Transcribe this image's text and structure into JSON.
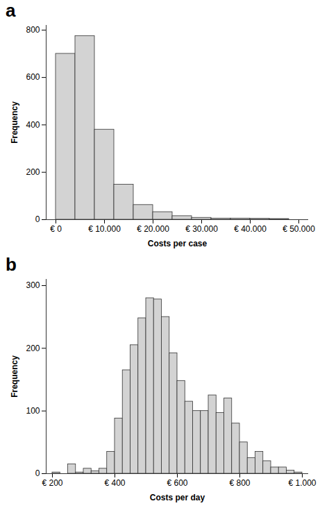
{
  "chart_data": [
    {
      "type": "histogram",
      "title": "a",
      "x_label": "Costs per case",
      "y_label": "Frequency",
      "bins": [
        0,
        4000,
        8000,
        12000,
        16000,
        20000,
        24000,
        28000,
        32000,
        36000,
        40000,
        44000,
        48000
      ],
      "values": [
        700,
        775,
        380,
        148,
        62,
        32,
        15,
        8,
        5,
        5,
        4,
        3
      ],
      "color": "#d3d3d3",
      "xlim": [
        -2000,
        52000
      ],
      "xticks": [
        {
          "value": 0,
          "label": "€ 0"
        },
        {
          "value": 10000,
          "label": "€ 10.000"
        },
        {
          "value": 20000,
          "label": "€ 20.000"
        },
        {
          "value": 30000,
          "label": "€ 30.000"
        },
        {
          "value": 40000,
          "label": "€ 40.000"
        },
        {
          "value": 50000,
          "label": "€ 50.000"
        }
      ],
      "ylim": [
        0,
        820
      ],
      "yticks": [
        0,
        200,
        400,
        600,
        800
      ],
      "grid": false
    },
    {
      "type": "histogram",
      "title": "b",
      "x_label": "Costs per day",
      "y_label": "Frequency",
      "bins": [
        200,
        225,
        250,
        275,
        300,
        325,
        350,
        375,
        400,
        425,
        450,
        475,
        500,
        525,
        550,
        575,
        600,
        625,
        650,
        675,
        700,
        725,
        750,
        775,
        800,
        825,
        850,
        875,
        900,
        925,
        950,
        975,
        1000
      ],
      "values": [
        2,
        0,
        15,
        2,
        8,
        4,
        8,
        35,
        88,
        165,
        205,
        248,
        280,
        278,
        250,
        192,
        148,
        115,
        100,
        100,
        125,
        97,
        120,
        80,
        50,
        25,
        35,
        20,
        10,
        10,
        5,
        2
      ],
      "color": "#d3d3d3",
      "xlim": [
        180,
        1020
      ],
      "xticks": [
        {
          "value": 200,
          "label": "€ 200"
        },
        {
          "value": 400,
          "label": "€ 400"
        },
        {
          "value": 600,
          "label": "€ 600"
        },
        {
          "value": 800,
          "label": "€ 800"
        },
        {
          "value": 1000,
          "label": "€ 1.000"
        }
      ],
      "ylim": [
        0,
        310
      ],
      "yticks": [
        0,
        100,
        200,
        300
      ],
      "grid": false
    }
  ]
}
